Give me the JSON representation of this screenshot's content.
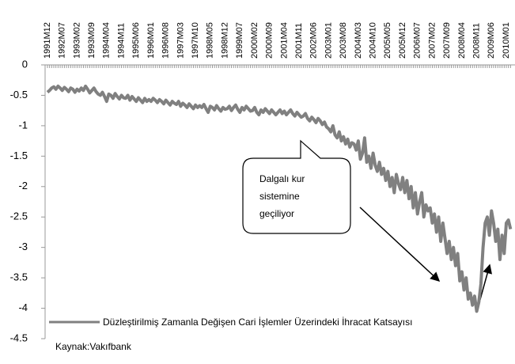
{
  "chart_data": {
    "type": "line",
    "categories": [
      "1991M12",
      null,
      null,
      null,
      null,
      null,
      null,
      "1992M07",
      null,
      null,
      null,
      null,
      null,
      null,
      "1993M02",
      null,
      null,
      null,
      null,
      null,
      null,
      "1993M09",
      null,
      null,
      null,
      null,
      null,
      null,
      "1994M04",
      null,
      null,
      null,
      null,
      null,
      null,
      "1994M11",
      null,
      null,
      null,
      null,
      null,
      null,
      "1995M06",
      null,
      null,
      null,
      null,
      null,
      null,
      "1996M01",
      null,
      null,
      null,
      null,
      null,
      null,
      "1996M08",
      null,
      null,
      null,
      null,
      null,
      null,
      "1997M03",
      null,
      null,
      null,
      null,
      null,
      null,
      "1997M10",
      null,
      null,
      null,
      null,
      null,
      null,
      "1998M05",
      null,
      null,
      null,
      null,
      null,
      null,
      "1998M12",
      null,
      null,
      null,
      null,
      null,
      null,
      "1999M07",
      null,
      null,
      null,
      null,
      null,
      null,
      "2000M02",
      null,
      null,
      null,
      null,
      null,
      null,
      "2000M09",
      null,
      null,
      null,
      null,
      null,
      null,
      "2001M04",
      null,
      null,
      null,
      null,
      null,
      null,
      "2001M11",
      null,
      null,
      null,
      null,
      null,
      null,
      "2002M06",
      null,
      null,
      null,
      null,
      null,
      null,
      "2003M01",
      null,
      null,
      null,
      null,
      null,
      null,
      "2003M08",
      null,
      null,
      null,
      null,
      null,
      null,
      "2004M03",
      null,
      null,
      null,
      null,
      null,
      null,
      "2004M10",
      null,
      null,
      null,
      null,
      null,
      null,
      "2005M05",
      null,
      null,
      null,
      null,
      null,
      null,
      "2005M12",
      null,
      null,
      null,
      null,
      null,
      null,
      "2006M07",
      null,
      null,
      null,
      null,
      null,
      null,
      "2007M02",
      null,
      null,
      null,
      null,
      null,
      null,
      "2007M09",
      null,
      null,
      null,
      null,
      null,
      null,
      "2008M04",
      null,
      null,
      null,
      null,
      null,
      null,
      "2008M11",
      null,
      null,
      null,
      null,
      null,
      null,
      "2009M06",
      null,
      null,
      null,
      null,
      null,
      null,
      "2010M01",
      null,
      null
    ],
    "series": [
      {
        "name": "Düzleştirilmiş Zamanla Değişen Cari İşlemler Üzerindeki İhracat Katsayısı",
        "color": "#808080",
        "values": [
          -0.45,
          -0.42,
          -0.38,
          -0.36,
          -0.4,
          -0.35,
          -0.38,
          -0.42,
          -0.37,
          -0.4,
          -0.44,
          -0.38,
          -0.4,
          -0.45,
          -0.4,
          -0.43,
          -0.38,
          -0.42,
          -0.35,
          -0.4,
          -0.46,
          -0.42,
          -0.38,
          -0.44,
          -0.48,
          -0.5,
          -0.45,
          -0.52,
          -0.6,
          -0.48,
          -0.5,
          -0.55,
          -0.47,
          -0.52,
          -0.56,
          -0.5,
          -0.54,
          -0.55,
          -0.5,
          -0.58,
          -0.52,
          -0.56,
          -0.6,
          -0.54,
          -0.58,
          -0.62,
          -0.55,
          -0.6,
          -0.57,
          -0.6,
          -0.55,
          -0.58,
          -0.62,
          -0.57,
          -0.6,
          -0.64,
          -0.58,
          -0.62,
          -0.66,
          -0.6,
          -0.63,
          -0.65,
          -0.6,
          -0.68,
          -0.63,
          -0.66,
          -0.7,
          -0.64,
          -0.68,
          -0.72,
          -0.66,
          -0.7,
          -0.67,
          -0.7,
          -0.65,
          -0.72,
          -0.78,
          -0.68,
          -0.7,
          -0.74,
          -0.67,
          -0.72,
          -0.76,
          -0.7,
          -0.73,
          -0.72,
          -0.68,
          -0.75,
          -0.7,
          -0.66,
          -0.73,
          -0.78,
          -0.7,
          -0.74,
          -0.68,
          -0.72,
          -0.76,
          -0.75,
          -0.7,
          -0.78,
          -0.82,
          -0.74,
          -0.78,
          -0.72,
          -0.76,
          -0.8,
          -0.74,
          -0.78,
          -0.82,
          -0.78,
          -0.74,
          -0.8,
          -0.76,
          -0.82,
          -0.78,
          -0.74,
          -0.8,
          -0.84,
          -0.78,
          -0.82,
          -0.86,
          -0.84,
          -0.8,
          -0.88,
          -0.92,
          -0.86,
          -0.9,
          -0.95,
          -0.88,
          -0.92,
          -0.98,
          -0.94,
          -1.02,
          -1.05,
          -1.1,
          -1.0,
          -1.15,
          -1.2,
          -1.1,
          -1.25,
          -1.18,
          -1.3,
          -1.22,
          -1.35,
          -1.28,
          -1.3,
          -1.4,
          -1.25,
          -1.55,
          -1.45,
          -1.2,
          -1.6,
          -1.5,
          -1.7,
          -1.45,
          -1.65,
          -1.75,
          -1.6,
          -1.8,
          -1.7,
          -1.9,
          -1.75,
          -2.0,
          -1.85,
          -2.1,
          -1.8,
          -1.95,
          -2.05,
          -1.85,
          -2.1,
          -1.9,
          -2.2,
          -2.0,
          -2.35,
          -2.1,
          -2.45,
          -2.25,
          -2.1,
          -2.5,
          -2.3,
          -2.4,
          -2.35,
          -2.6,
          -2.45,
          -2.75,
          -2.5,
          -2.9,
          -2.6,
          -2.85,
          -3.1,
          -2.9,
          -3.2,
          -3.0,
          -3.3,
          -3.1,
          -3.55,
          -3.4,
          -3.7,
          -3.5,
          -3.85,
          -3.75,
          -3.95,
          -3.8,
          -4.05,
          -3.9,
          -3.6,
          -3.0,
          -2.6,
          -2.5,
          -2.8,
          -2.4,
          -2.6,
          -2.9,
          -2.7,
          -3.2,
          -2.8,
          -3.1,
          -2.6,
          -2.55,
          -2.7
        ]
      }
    ],
    "ylim": [
      -4.5,
      0
    ],
    "yticks": [
      0,
      -0.5,
      -1,
      -1.5,
      -2,
      -2.5,
      -3,
      -3.5,
      -4,
      -4.5
    ],
    "grid": false,
    "legend": "bottom-left",
    "annotation": [
      "Dalgalı kur",
      "sistemine",
      "geçiliyor"
    ],
    "source": "Kaynak:Vakıfbank"
  }
}
